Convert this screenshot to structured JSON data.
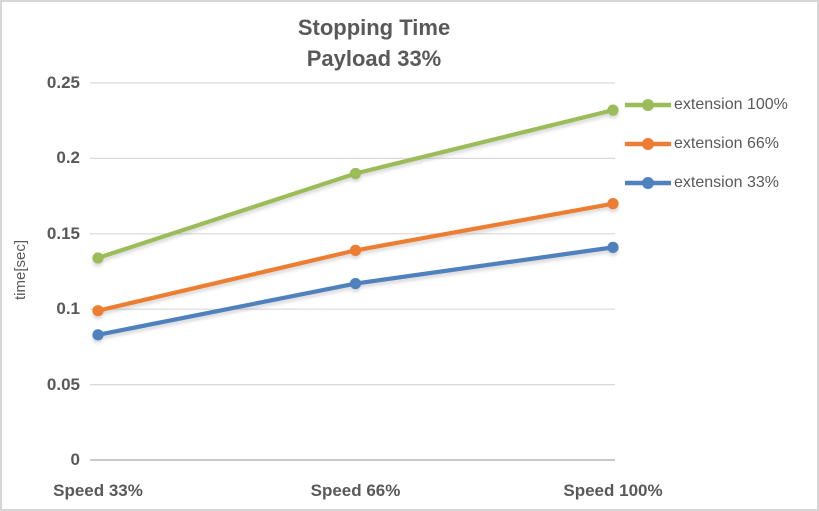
{
  "chart_data": {
    "type": "line",
    "title": "Stopping Time",
    "subtitle": "Payload 33%",
    "title_lines": [
      "Stopping Time",
      "Payload 33%"
    ],
    "categories": [
      "Speed 33%",
      "Speed 66%",
      "Speed 100%"
    ],
    "series": [
      {
        "name": "extension 100%",
        "color": "#9CBB59",
        "values": [
          0.134,
          0.19,
          0.232
        ]
      },
      {
        "name": "extension 66%",
        "color": "#ED7D31",
        "values": [
          0.099,
          0.139,
          0.17
        ]
      },
      {
        "name": "extension 33%",
        "color": "#4E81BD",
        "values": [
          0.083,
          0.117,
          0.141
        ]
      }
    ],
    "xlabel": "",
    "ylabel": "time[sec]",
    "ylim": [
      0,
      0.25
    ],
    "yticks": [
      0,
      0.05,
      0.1,
      0.15,
      0.2,
      0.25
    ],
    "ytick_labels": [
      "0",
      "0.05",
      "0.1",
      "0.15",
      "0.2",
      "0.25"
    ],
    "grid": true,
    "marker": "circle",
    "legend_position": "right"
  },
  "colors": {
    "background": "#FFFFFF",
    "frame_border": "#D6D6D6",
    "gridline": "#D9D9D9",
    "axis_line": "#C9C9C9",
    "text": "#595959"
  }
}
